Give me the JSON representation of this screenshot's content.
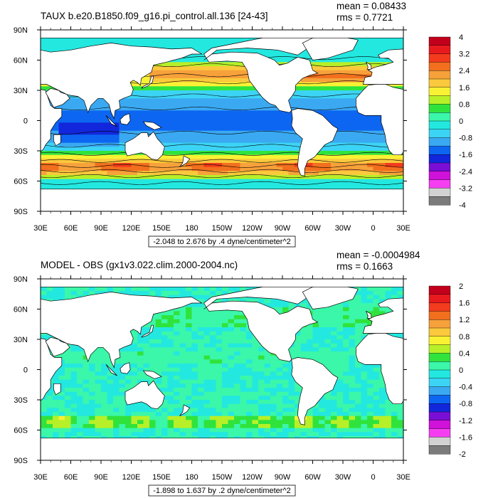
{
  "colors": {
    "land": "#ffffff",
    "coastline": "#000000",
    "frame": "#000000"
  },
  "chart_data": [
    {
      "type": "heatmap",
      "title": "TAUX b.e20.B1850.f09_g16.pi_control.all.136 [24-43]",
      "stats": [
        "mean = 0.08433",
        "rms = 0.7721"
      ],
      "range_label": "-2.048 to 2.676 by .4 dyne/centimeter^2",
      "xticks": [
        "30E",
        "60E",
        "90E",
        "120E",
        "150E",
        "180",
        "150W",
        "120W",
        "90W",
        "60W",
        "30W",
        "0",
        "30E"
      ],
      "yticks": [
        "90N",
        "60N",
        "30N",
        "0",
        "30S",
        "60S",
        "90S"
      ],
      "xlim": [
        30,
        390
      ],
      "ylim": [
        -90,
        90
      ],
      "colorbar": {
        "labels": [
          "4",
          "3.2",
          "2.4",
          "1.6",
          "0.8",
          "0",
          "-0.8",
          "-1.6",
          "-2.4",
          "-3.2",
          "-4"
        ],
        "colors": [
          "#c3001c",
          "#e81a1e",
          "#f33b1d",
          "#f26f1e",
          "#f7a13b",
          "#fbc93c",
          "#f9f234",
          "#b7f028",
          "#30e33c",
          "#3bf7a9",
          "#23e8e0",
          "#3cd4f5",
          "#3aa9f2",
          "#0d66f1",
          "#1227dc",
          "#7b0ed6",
          "#d011d9",
          "#f53ef2",
          "#d2d2d2",
          "#7b7b7b"
        ]
      },
      "field": "zonal"
    },
    {
      "type": "heatmap",
      "title": "MODEL - OBS (gx1v3.022.clim.2000-2004.nc)",
      "stats": [
        "mean = -0.0004984",
        "rms = 0.1663"
      ],
      "range_label": "-1.898 to 1.637 by .2 dyne/centimeter^2",
      "xticks": [
        "30E",
        "60E",
        "90E",
        "120E",
        "150E",
        "180",
        "150W",
        "120W",
        "90W",
        "60W",
        "30W",
        "0",
        "30E"
      ],
      "yticks": [
        "90N",
        "60N",
        "30N",
        "0",
        "30S",
        "60S",
        "90S"
      ],
      "xlim": [
        30,
        390
      ],
      "ylim": [
        -90,
        90
      ],
      "colorbar": {
        "labels": [
          "2",
          "1.6",
          "1.2",
          "0.8",
          "0.4",
          "0",
          "-0.4",
          "-0.8",
          "-1.2",
          "-1.6",
          "-2"
        ],
        "colors": [
          "#c3001c",
          "#e81a1e",
          "#f33b1d",
          "#f26f1e",
          "#f7a13b",
          "#fbc93c",
          "#f9f234",
          "#b7f028",
          "#30e33c",
          "#3bf7a9",
          "#23e8e0",
          "#3cd4f5",
          "#3aa9f2",
          "#0d66f1",
          "#1227dc",
          "#7b0ed6",
          "#d011d9",
          "#f53ef2",
          "#d2d2d2",
          "#7b7b7b"
        ]
      },
      "field": "diff"
    }
  ]
}
